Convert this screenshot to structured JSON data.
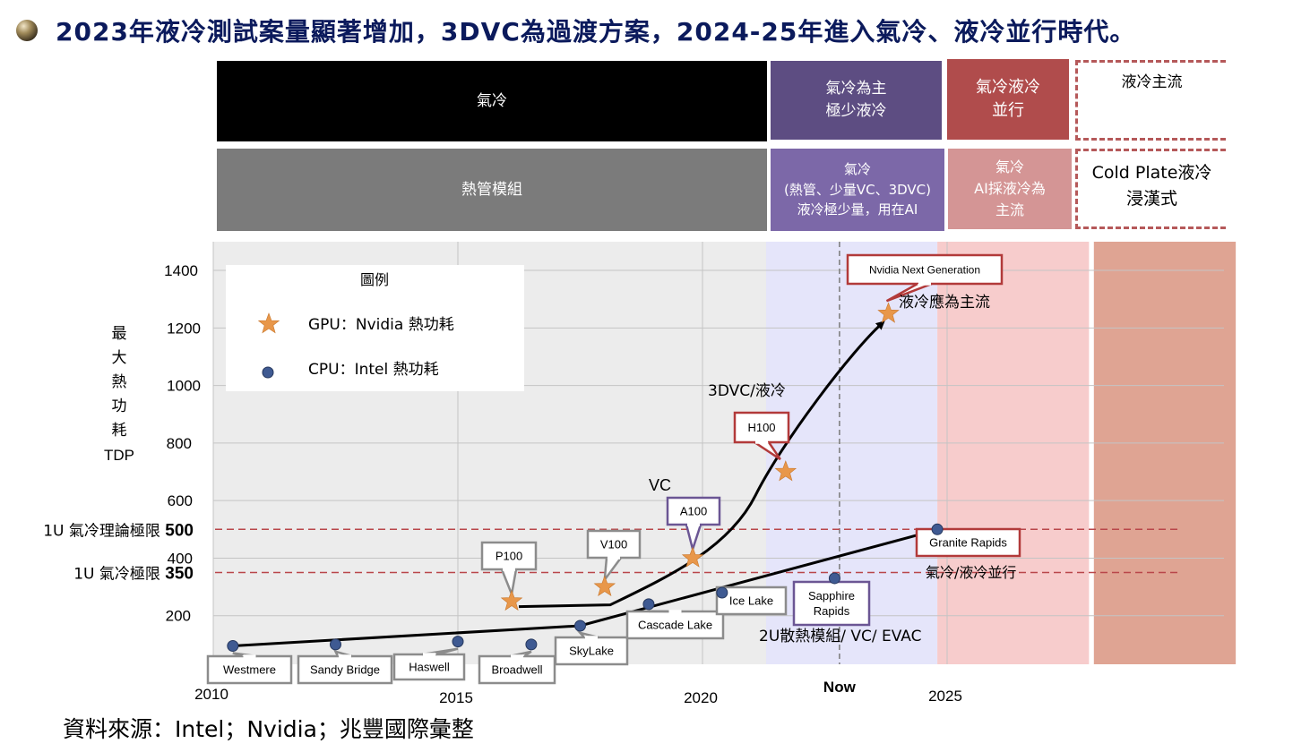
{
  "title": "2023年液冷測試案量顯著增加，3DVC為過渡方案，2024-25年進入氣冷、液冷並行時代。",
  "bands": {
    "row1": [
      {
        "lines": [
          "氣冷"
        ]
      },
      {
        "lines": [
          "氣冷為主",
          "極少液冷"
        ]
      },
      {
        "lines": [
          "氣冷液冷",
          "並行"
        ]
      },
      {
        "lines": [
          "液冷主流"
        ]
      }
    ],
    "row2": [
      {
        "lines": [
          "熱管模組"
        ]
      },
      {
        "lines": [
          "氣冷",
          "(熱管、少量VC、3DVC)",
          "液冷極少量，用在AI"
        ]
      },
      {
        "lines": [
          "氣冷",
          "AI採液冷為",
          "主流"
        ]
      },
      {
        "lines": [
          "Cold Plate液冷",
          "浸漢式"
        ]
      }
    ]
  },
  "y_axis_label": [
    "最",
    "大",
    "熱",
    "功",
    "耗",
    "TDP"
  ],
  "legend": {
    "title": "圖例",
    "gpu": "GPU：Nvidia 熱功耗",
    "cpu": "CPU：Intel     熱功耗"
  },
  "limits": [
    {
      "label": "1U 氣冷理論極限",
      "value": 500
    },
    {
      "label": "1U 氣冷極限",
      "value": 350
    }
  ],
  "now_label": "Now",
  "annotations": {
    "liquid_main": "液冷應為主流",
    "dvc3": "3DVC/液冷",
    "vc": "VC",
    "coexist": "氣冷/液冷並行",
    "evac": "2U散熱模組/ VC/ EVAC"
  },
  "source": "資料來源：Intel；Nvidia；兆豐國際彙整",
  "colors": {
    "gpu": "#e8974a",
    "cpu": "#3f5a92",
    "limit": "#b9464a",
    "band_black": "#000000",
    "band_gray": "#7b7b7b",
    "band_purple": "#5d4d82",
    "band_purple2": "#7c68a8",
    "band_red": "#b04c4c",
    "band_pink": "#d49595"
  },
  "chart_data": {
    "type": "scatter",
    "title": "",
    "xlabel": "",
    "ylabel": "最大熱功耗 TDP",
    "x_ticks": [
      2010,
      2015,
      2020,
      2025
    ],
    "y_ticks": [
      200,
      400,
      600,
      800,
      1000,
      1200,
      1400
    ],
    "series": [
      {
        "name": "GPU：Nvidia",
        "marker": "star",
        "points": [
          {
            "label": "P100",
            "x": 2016.1,
            "y": 250
          },
          {
            "label": "V100",
            "x": 2018.0,
            "y": 300
          },
          {
            "label": "A100",
            "x": 2019.8,
            "y": 400
          },
          {
            "label": "H100",
            "x": 2021.7,
            "y": 700
          },
          {
            "label": "Nvidia Next Generation",
            "x": 2023.8,
            "y": 1250
          }
        ]
      },
      {
        "name": "CPU：Intel",
        "marker": "circle",
        "points": [
          {
            "label": "Westmere",
            "x": 2010.4,
            "y": 95
          },
          {
            "label": "Sandy Bridge",
            "x": 2012.5,
            "y": 100
          },
          {
            "label": "Haswell",
            "x": 2015.0,
            "y": 110
          },
          {
            "label": "Broadwell",
            "x": 2016.5,
            "y": 100
          },
          {
            "label": "SkyLake",
            "x": 2017.5,
            "y": 165
          },
          {
            "label": "Cascade Lake",
            "x": 2018.9,
            "y": 240
          },
          {
            "label": "Ice Lake",
            "x": 2020.4,
            "y": 280
          },
          {
            "label": "Sapphire Rapids",
            "x": 2022.7,
            "y": 330
          },
          {
            "label": "Granite Rapids",
            "x": 2024.8,
            "y": 500
          }
        ]
      }
    ],
    "phases": [
      {
        "from": 2010.0,
        "to": 2021.3,
        "color": "#ececec"
      },
      {
        "from": 2021.3,
        "to": 2024.8,
        "color": "#e5e5fa"
      },
      {
        "from": 2024.8,
        "to": 2027.9,
        "color": "#f7cccc"
      },
      {
        "from": 2028.0,
        "to": 2030.9,
        "color": "#dfa493"
      }
    ],
    "now_x": 2022.8
  }
}
